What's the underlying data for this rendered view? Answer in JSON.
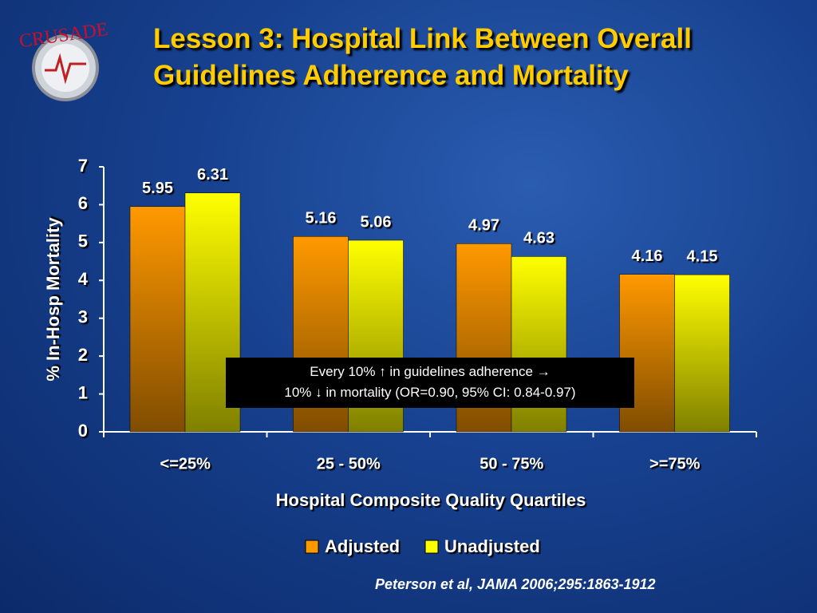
{
  "logo": "CRUSADE",
  "chart_data": {
    "type": "bar",
    "title": "Lesson 3: Hospital Link Between Overall Guidelines Adherence and Mortality",
    "categories": [
      "<=25%",
      "25 - 50%",
      "50 - 75%",
      ">=75%"
    ],
    "series": [
      {
        "name": "Adjusted",
        "color": "#ff9900",
        "values": [
          5.95,
          5.16,
          4.97,
          4.16
        ]
      },
      {
        "name": "Unadjusted",
        "color": "#ffff00",
        "values": [
          6.31,
          5.06,
          4.63,
          4.15
        ]
      }
    ],
    "ylim": [
      0,
      7
    ],
    "yticks": [
      0,
      1,
      2,
      3,
      4,
      5,
      6,
      7
    ],
    "x_label": "Hospital Composite Quality Quartiles",
    "y_label": "% In-Hosp Mortality",
    "annotation": [
      "Every 10% ↑ in guidelines adherence →",
      "10% ↓ in mortality (OR=0.90, 95% CI: 0.84-0.97)"
    ],
    "citation": "Peterson et al, JAMA 2006;295:1863-1912",
    "legend": "bottom"
  }
}
